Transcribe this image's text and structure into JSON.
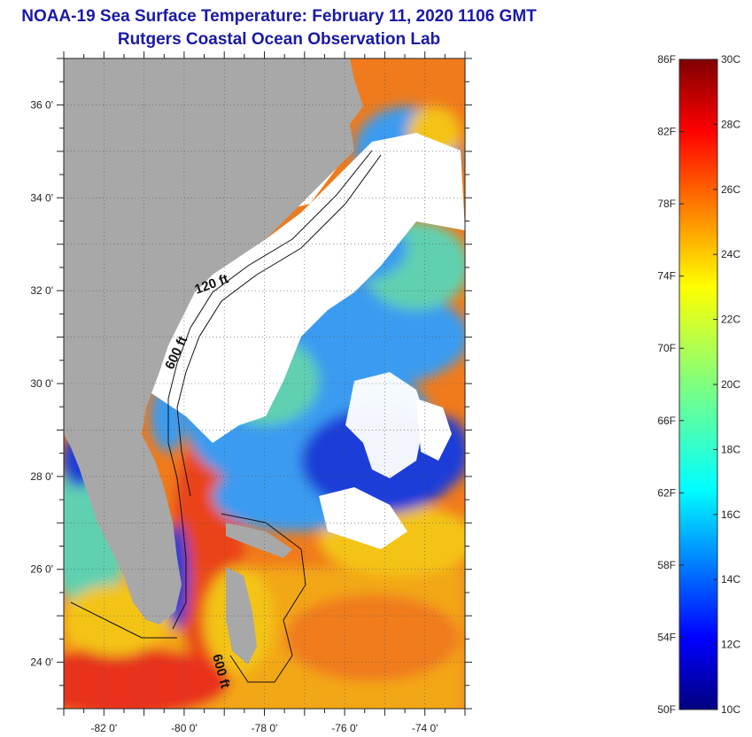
{
  "title": {
    "line1": "NOAA-19 Sea Surface Temperature:  February 11, 2020 1106 GMT",
    "line2": "Rutgers Coastal Ocean Observation Lab"
  },
  "map": {
    "lon_range": [
      -83,
      -73
    ],
    "lat_range": [
      23,
      37
    ],
    "lon_ticks": [
      {
        "value": -82,
        "label": "-82 0'"
      },
      {
        "value": -80,
        "label": "-80 0'"
      },
      {
        "value": -78,
        "label": "-78 0'"
      },
      {
        "value": -76,
        "label": "-76 0'"
      },
      {
        "value": -74,
        "label": "-74 0'"
      }
    ],
    "lat_ticks": [
      {
        "value": 24,
        "label": "24 0'"
      },
      {
        "value": 26,
        "label": "26 0'"
      },
      {
        "value": 28,
        "label": "28 0'"
      },
      {
        "value": 30,
        "label": "30 0'"
      },
      {
        "value": 32,
        "label": "32 0'"
      },
      {
        "value": 34,
        "label": "34 0'"
      },
      {
        "value": 36,
        "label": "36 0'"
      }
    ],
    "contour_labels": [
      "120 ft",
      "600 ft",
      "600 ft"
    ],
    "colors": {
      "land": "#a8a8a8",
      "cloud": "#ffffff",
      "cold": "#1e3cd8",
      "cool": "#3a9bf0",
      "mild": "#60d0b0",
      "warm": "#f3c416",
      "hot": "#f07b1c",
      "hottest": "#e8321a"
    }
  },
  "colorbar": {
    "fahrenheit_labels": [
      "86F",
      "82F",
      "78F",
      "74F",
      "70F",
      "66F",
      "62F",
      "58F",
      "54F",
      "50F"
    ],
    "celsius_labels": [
      "30C",
      "28C",
      "26C",
      "24C",
      "22C",
      "20C",
      "18C",
      "16C",
      "14C",
      "12C",
      "10C"
    ]
  }
}
